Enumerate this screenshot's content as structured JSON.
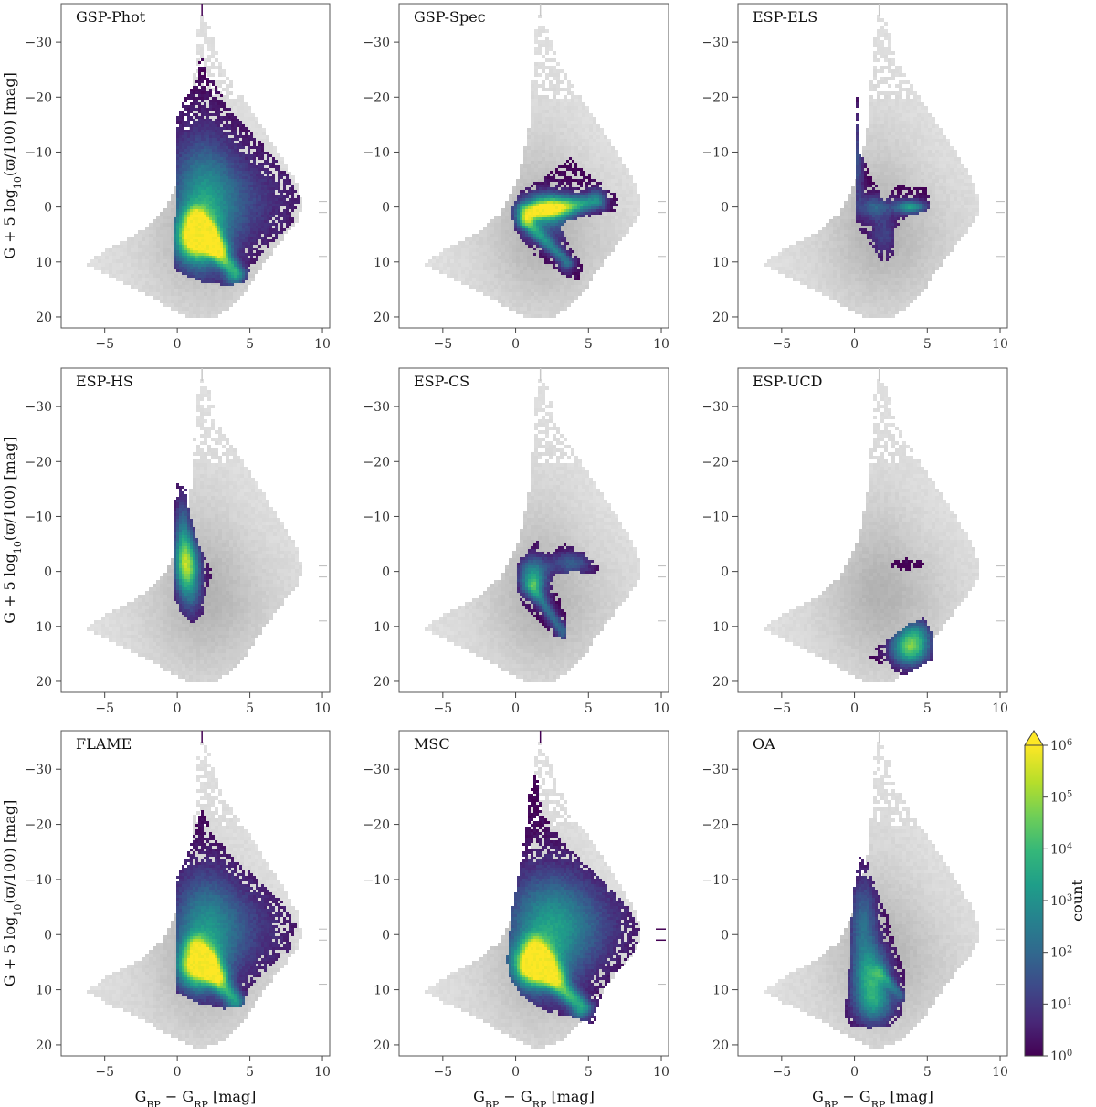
{
  "chart_data": {
    "type": "heatmap",
    "layout": "3x3 grid of colour-magnitude density diagrams",
    "xlabel": "G",
    "xlabel_sub1": "BP",
    "xlabel_mid": " − G",
    "xlabel_sub2": "RP",
    "xlabel_unit": " [mag]",
    "ylabel_pre": "G + 5 log",
    "ylabel_sub": "10",
    "ylabel_post": "(ϖ/100) [mag]",
    "xlim": [
      -8,
      10.5
    ],
    "ylim": [
      22,
      -37
    ],
    "y_inverted": true,
    "xticks": [
      -5,
      0,
      5,
      10
    ],
    "xtick_labels": [
      "−5",
      "0",
      "5",
      "10"
    ],
    "yticks": [
      -30,
      -20,
      -10,
      0,
      10,
      20
    ],
    "ytick_labels": [
      "−30",
      "−20",
      "−10",
      "0",
      "10",
      "20"
    ],
    "background": "all sources shown in grey density",
    "colormap": "viridis",
    "colorbar": {
      "label": "count",
      "scale": "log",
      "ticks": [
        0,
        1,
        2,
        3,
        4,
        5,
        6
      ],
      "tick_base": "10",
      "extend": "max"
    },
    "panels": [
      {
        "title": "GSP-Phot",
        "mark_top": true,
        "mark_right": false
      },
      {
        "title": "GSP-Spec",
        "mark_top": false,
        "mark_right": false
      },
      {
        "title": "ESP-ELS",
        "mark_top": false,
        "mark_right": false
      },
      {
        "title": "ESP-HS",
        "mark_top": false,
        "mark_right": false
      },
      {
        "title": "ESP-CS",
        "mark_top": false,
        "mark_right": false
      },
      {
        "title": "ESP-UCD",
        "mark_top": false,
        "mark_right": false
      },
      {
        "title": "FLAME",
        "mark_top": true,
        "mark_right": false
      },
      {
        "title": "MSC",
        "mark_top": true,
        "mark_right": true
      },
      {
        "title": "OA",
        "mark_top": false,
        "mark_right": false
      }
    ],
    "colors": {
      "viridis": [
        "#440154",
        "#482878",
        "#3e4989",
        "#31688e",
        "#26828e",
        "#1f9e89",
        "#35b779",
        "#6ece58",
        "#b5de2b",
        "#fde725"
      ],
      "grey_dark": "#b4b4b4",
      "grey_light": "#f4f4f4"
    }
  }
}
